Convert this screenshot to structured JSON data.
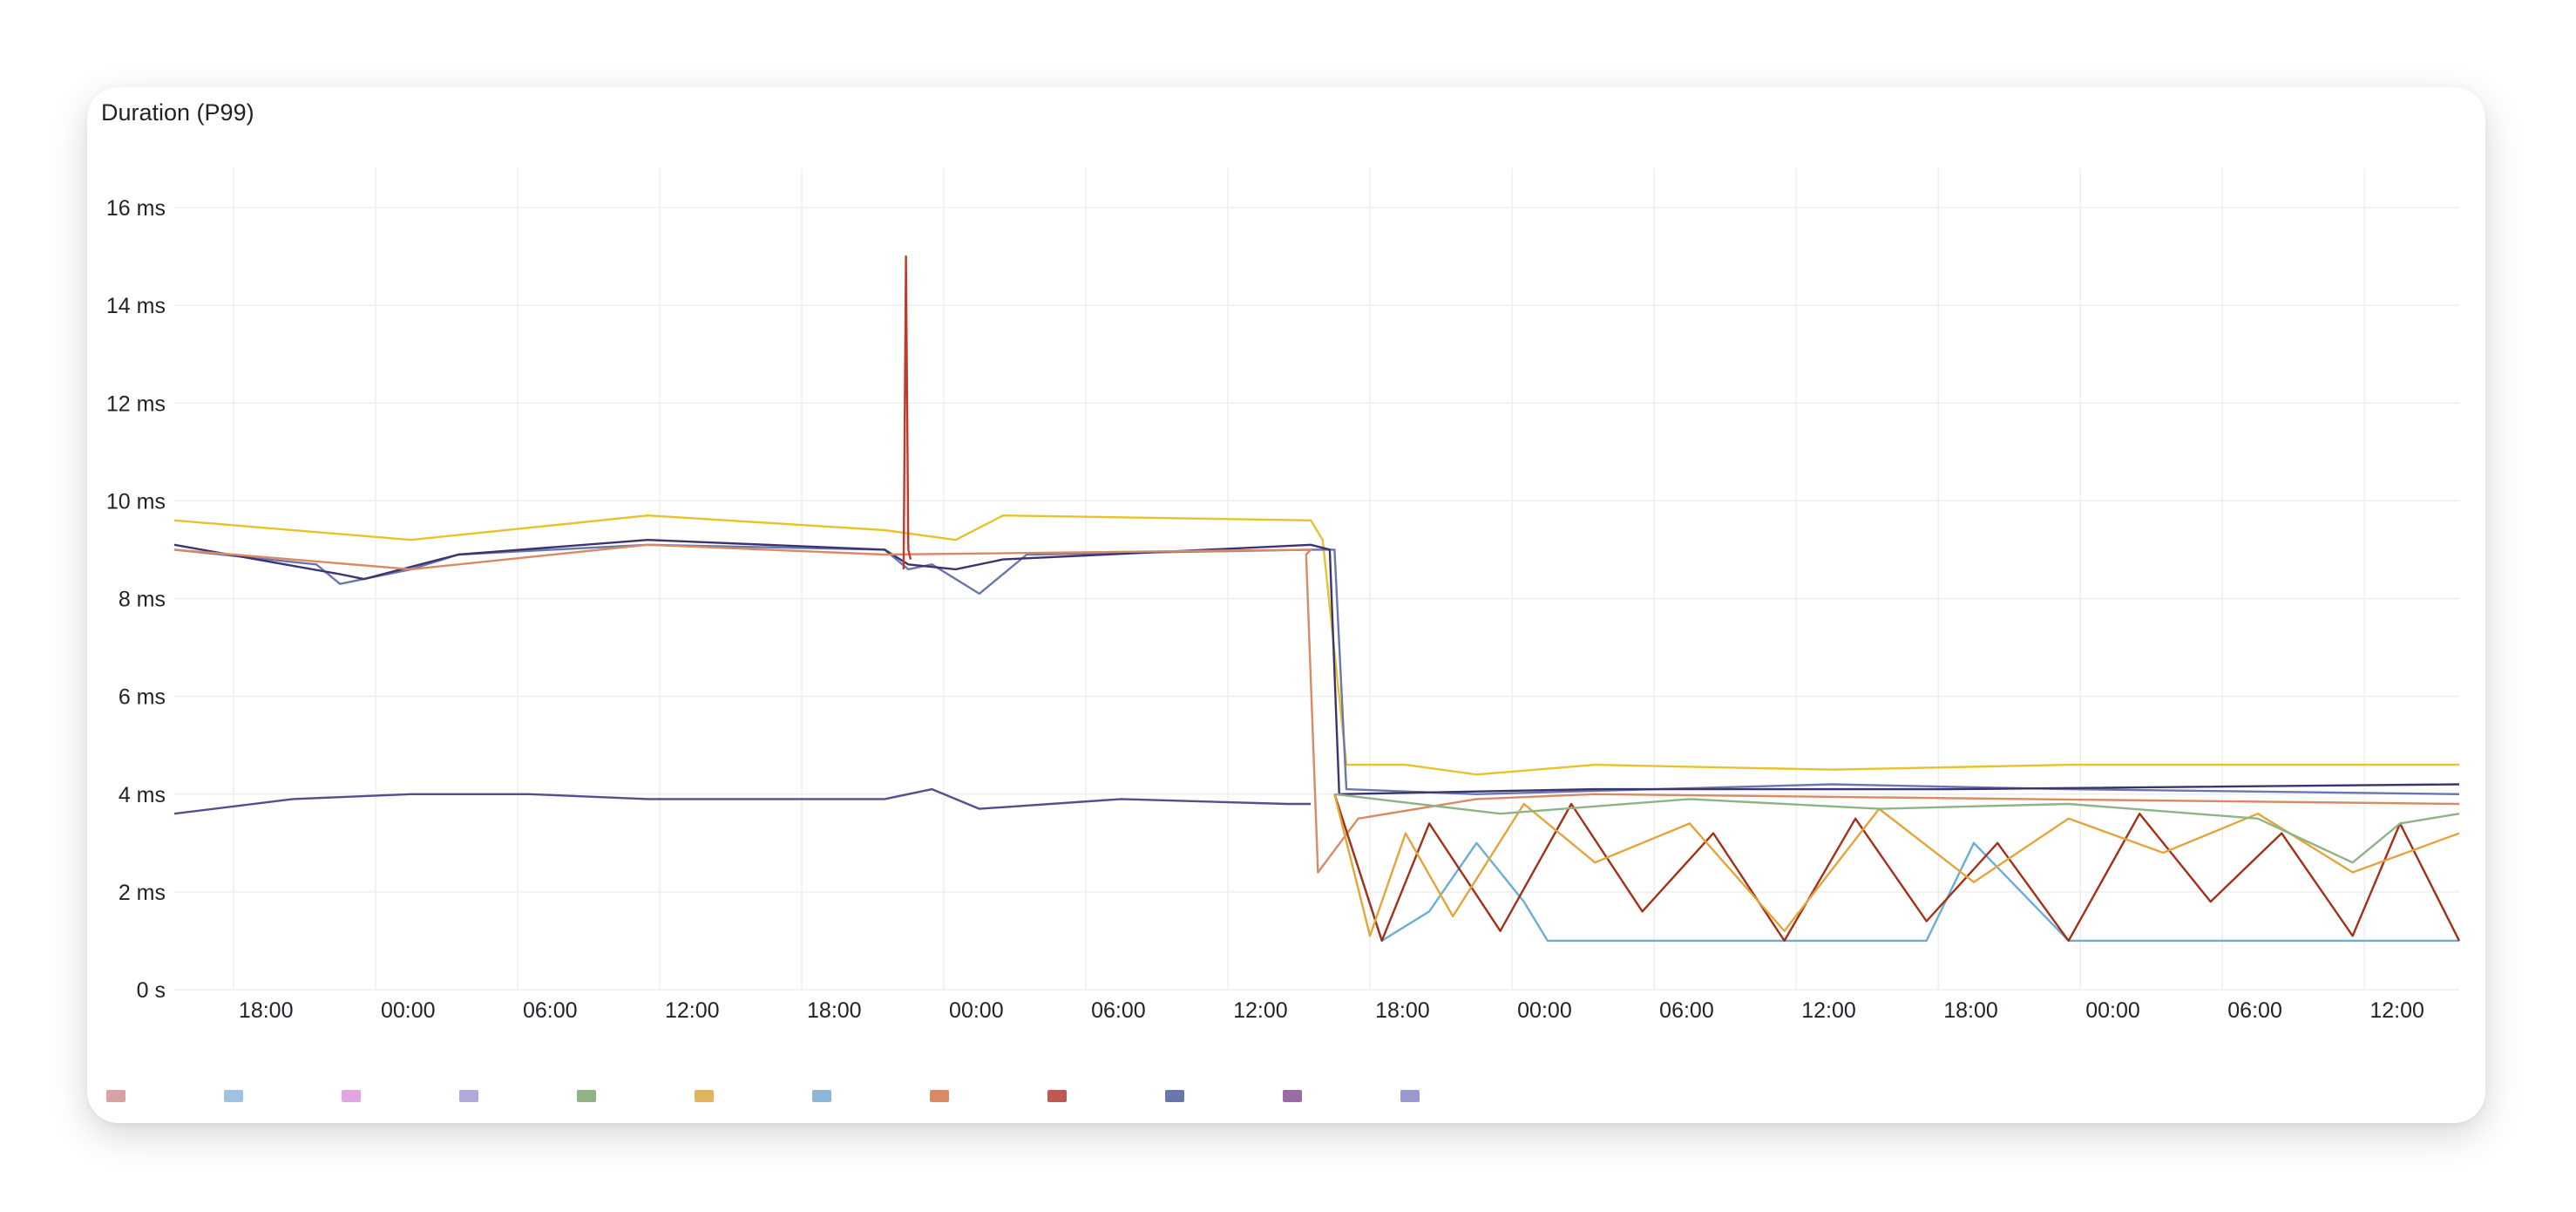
{
  "panel": {
    "title": "Duration (P99)"
  },
  "colors": {
    "grid": "#eeeeee",
    "axis_text": "#1f2328",
    "series_palette": [
      "#d9a0a6",
      "#9dc3df",
      "#e2a5e0",
      "#b2a8d9",
      "#8eb486",
      "#e3b25f",
      "#8db6d6",
      "#d98a63",
      "#bd5a52",
      "#6a77ad",
      "#9a6ca4",
      "#9b97cf",
      "#e8c22a",
      "#c0392b",
      "#5a4b8f",
      "#6aaed6",
      "#e5a43a",
      "#3c3470",
      "#a33016",
      "#e07a5f"
    ]
  },
  "chart_data": {
    "type": "line",
    "title": "Duration (P99)",
    "xlabel": "",
    "ylabel": "",
    "ylim": [
      0,
      16
    ],
    "yticks": [
      {
        "value": 0,
        "label": "0 s"
      },
      {
        "value": 2,
        "label": "2 ms"
      },
      {
        "value": 4,
        "label": "4 ms"
      },
      {
        "value": 6,
        "label": "6 ms"
      },
      {
        "value": 8,
        "label": "8 ms"
      },
      {
        "value": 10,
        "label": "10 ms"
      },
      {
        "value": 12,
        "label": "12 ms"
      },
      {
        "value": 14,
        "label": "14 ms"
      },
      {
        "value": 16,
        "label": "16 ms"
      }
    ],
    "x_unit": "hours",
    "xlim": [
      0,
      96.5
    ],
    "xticks": [
      {
        "value": 2.5,
        "label": "18:00"
      },
      {
        "value": 8.5,
        "label": "00:00"
      },
      {
        "value": 14.5,
        "label": "06:00"
      },
      {
        "value": 20.5,
        "label": "12:00"
      },
      {
        "value": 26.5,
        "label": "18:00"
      },
      {
        "value": 32.5,
        "label": "00:00"
      },
      {
        "value": 38.5,
        "label": "06:00"
      },
      {
        "value": 44.5,
        "label": "12:00"
      },
      {
        "value": 50.5,
        "label": "18:00"
      },
      {
        "value": 56.5,
        "label": "00:00"
      },
      {
        "value": 62.5,
        "label": "06:00"
      },
      {
        "value": 68.5,
        "label": "12:00"
      },
      {
        "value": 74.5,
        "label": "18:00"
      },
      {
        "value": 80.5,
        "label": "00:00"
      },
      {
        "value": 86.5,
        "label": "06:00"
      },
      {
        "value": 92.5,
        "label": "12:00"
      }
    ],
    "grid": true,
    "legend": "bottom",
    "series": [
      {
        "color": "#e8c22a",
        "x": [
          0,
          10,
          20,
          30,
          33,
          35,
          48,
          48.5,
          49.5,
          52,
          55,
          60,
          70,
          80,
          90,
          96.5
        ],
        "y": [
          9.6,
          9.2,
          9.7,
          9.4,
          9.2,
          9.7,
          9.6,
          9.2,
          4.6,
          4.6,
          4.4,
          4.6,
          4.5,
          4.6,
          4.6,
          4.6
        ]
      },
      {
        "color": "#6a77ad",
        "x": [
          0,
          6,
          7,
          10,
          12,
          20,
          30,
          31,
          32,
          34,
          36,
          48,
          49,
          49.5,
          55,
          70,
          80,
          96.5
        ],
        "y": [
          9.0,
          8.7,
          8.3,
          8.6,
          8.9,
          9.1,
          9.0,
          8.6,
          8.7,
          8.1,
          8.9,
          9.0,
          9.0,
          4.1,
          4.0,
          4.2,
          4.1,
          4.0
        ]
      },
      {
        "color": "#3c3470",
        "x": [
          0,
          7,
          8,
          12,
          20,
          30,
          31,
          33,
          35,
          48,
          48.8,
          49.2,
          60,
          75,
          96.5
        ],
        "y": [
          9.1,
          8.5,
          8.4,
          8.9,
          9.2,
          9.0,
          8.7,
          8.6,
          8.8,
          9.1,
          9.0,
          4.0,
          4.1,
          4.1,
          4.2
        ]
      },
      {
        "color": "#d98a63",
        "x": [
          0,
          10,
          20,
          30,
          48,
          47.8,
          48.3,
          50,
          55,
          60,
          96.5
        ],
        "y": [
          9.0,
          8.6,
          9.1,
          8.9,
          9.0,
          8.9,
          2.4,
          3.5,
          3.9,
          4.0,
          3.8
        ]
      },
      {
        "color": "#5a4b8f",
        "x": [
          0,
          5,
          10,
          15,
          20,
          25,
          30,
          32,
          34,
          40,
          47,
          48
        ],
        "y": [
          3.6,
          3.9,
          4.0,
          4.0,
          3.9,
          3.9,
          3.9,
          4.1,
          3.7,
          3.9,
          3.8,
          3.8
        ]
      },
      {
        "color": "#6aaed6",
        "x": [
          49,
          51,
          53,
          55,
          57,
          58,
          62,
          66,
          70,
          74,
          76,
          80,
          83,
          86,
          90,
          93,
          96.5
        ],
        "y": [
          4.0,
          1.0,
          1.6,
          3.0,
          1.8,
          1.0,
          1.0,
          1.0,
          1.0,
          1.0,
          3.0,
          1.0,
          1.0,
          1.0,
          1.0,
          1.0,
          1.0
        ]
      },
      {
        "color": "#a33016",
        "x": [
          49,
          51,
          53,
          56,
          59,
          62,
          65,
          68,
          71,
          74,
          77,
          80,
          83,
          86,
          89,
          92,
          94,
          96.5
        ],
        "y": [
          4.0,
          1.0,
          3.4,
          1.2,
          3.8,
          1.6,
          3.2,
          1.0,
          3.5,
          1.4,
          3.0,
          1.0,
          3.6,
          1.8,
          3.2,
          1.1,
          3.4,
          1.0
        ]
      },
      {
        "color": "#e5a43a",
        "x": [
          49,
          50.5,
          52,
          54,
          57,
          60,
          64,
          68,
          72,
          76,
          80,
          84,
          88,
          92,
          96.5
        ],
        "y": [
          4.0,
          1.1,
          3.2,
          1.5,
          3.8,
          2.6,
          3.4,
          1.2,
          3.7,
          2.2,
          3.5,
          2.8,
          3.6,
          2.4,
          3.2
        ]
      },
      {
        "color": "#c0392b",
        "x": [
          30.8,
          30.9,
          31.0,
          31.1
        ],
        "y": [
          8.6,
          15.0,
          9.0,
          8.8
        ]
      },
      {
        "color": "#8eb486",
        "x": [
          49,
          56,
          64,
          72,
          80,
          88,
          92,
          94,
          96.5
        ],
        "y": [
          4.0,
          3.6,
          3.9,
          3.7,
          3.8,
          3.5,
          2.6,
          3.4,
          3.6
        ]
      }
    ],
    "legend_swatches": [
      "#d9a0a6",
      "#9dc3df",
      "#e2a5e0",
      "#b2a8d9",
      "#8eb486",
      "#e3b25f",
      "#8db6d6",
      "#d98a63",
      "#bd5a52",
      "#6a77ad",
      "#9a6ca4",
      "#9b97cf"
    ]
  }
}
